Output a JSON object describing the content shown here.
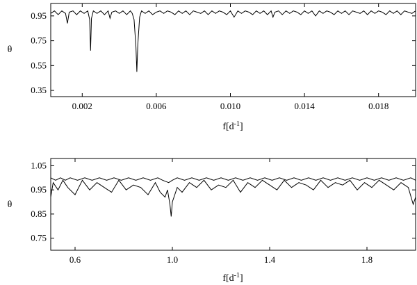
{
  "chart_data": [
    {
      "type": "line",
      "title": "",
      "xlabel": "f[d",
      "xlabel_sup": "-1",
      "xlabel_close": "]",
      "ylabel": "θ",
      "xlim": [
        0.0003,
        0.02
      ],
      "ylim": [
        0.3,
        1.05
      ],
      "xticks": [
        0.002,
        0.006,
        0.01,
        0.014,
        0.018
      ],
      "xtick_labels": [
        "0.002",
        "0.006",
        "0.010",
        "0.014",
        "0.018"
      ],
      "yticks": [
        0.35,
        0.55,
        0.75,
        0.95
      ],
      "ytick_labels": [
        "0.35",
        "0.55",
        "0.75",
        "0.95"
      ],
      "grid": false,
      "series": [
        {
          "x": [
            0.0003,
            0.0005,
            0.0007,
            0.0009,
            0.0011,
            0.0012,
            0.0013,
            0.0015,
            0.0017,
            0.0019,
            0.0021,
            0.0023,
            0.0024,
            0.00245,
            0.0025,
            0.0026,
            0.0028,
            0.003,
            0.0032,
            0.0034,
            0.0035,
            0.0036,
            0.0038,
            0.004,
            0.0042,
            0.0044,
            0.0046,
            0.0047,
            0.0048,
            0.0049,
            0.00495,
            0.005,
            0.0051,
            0.0052,
            0.0054,
            0.0056,
            0.0058,
            0.006,
            0.0062,
            0.0064,
            0.0066,
            0.0068,
            0.007,
            0.0072,
            0.0074,
            0.0076,
            0.0078,
            0.008,
            0.0082,
            0.0084,
            0.0086,
            0.0088,
            0.009,
            0.0092,
            0.0094,
            0.0096,
            0.0098,
            0.01,
            0.0102,
            0.0104,
            0.0106,
            0.0108,
            0.011,
            0.0112,
            0.0114,
            0.0116,
            0.0118,
            0.012,
            0.0122,
            0.0123,
            0.0124,
            0.0126,
            0.0128,
            0.013,
            0.0132,
            0.0134,
            0.0136,
            0.0138,
            0.014,
            0.0142,
            0.0144,
            0.0146,
            0.0148,
            0.015,
            0.0152,
            0.0154,
            0.0156,
            0.0158,
            0.016,
            0.0162,
            0.0164,
            0.0166,
            0.0168,
            0.017,
            0.0172,
            0.0174,
            0.0176,
            0.0178,
            0.018,
            0.0182,
            0.0184,
            0.0186,
            0.0188,
            0.019,
            0.0192,
            0.0194,
            0.0196,
            0.0198,
            0.02
          ],
          "y": [
            0.97,
            0.99,
            0.96,
            0.99,
            0.97,
            0.89,
            0.98,
            0.99,
            0.96,
            0.99,
            0.97,
            0.99,
            0.92,
            0.67,
            0.93,
            0.99,
            0.97,
            0.99,
            0.96,
            0.99,
            0.93,
            0.98,
            0.99,
            0.97,
            0.99,
            0.96,
            0.99,
            0.97,
            0.92,
            0.7,
            0.5,
            0.72,
            0.94,
            0.99,
            0.97,
            0.99,
            0.96,
            0.98,
            0.99,
            0.97,
            0.99,
            0.98,
            0.96,
            0.99,
            0.97,
            0.99,
            0.96,
            0.99,
            0.98,
            0.97,
            0.99,
            0.96,
            0.99,
            0.97,
            0.99,
            0.98,
            0.96,
            0.99,
            0.94,
            0.99,
            0.97,
            0.99,
            0.98,
            0.96,
            0.99,
            0.97,
            0.99,
            0.96,
            0.99,
            0.94,
            0.98,
            0.99,
            0.96,
            0.99,
            0.97,
            0.99,
            0.98,
            0.96,
            0.99,
            0.97,
            0.99,
            0.95,
            0.99,
            0.97,
            0.99,
            0.98,
            0.96,
            0.99,
            0.97,
            0.99,
            0.96,
            0.99,
            0.98,
            0.97,
            0.99,
            0.96,
            0.99,
            0.97,
            0.99,
            0.98,
            0.96,
            0.99,
            0.97,
            0.99,
            0.96,
            0.99,
            0.98,
            0.97,
            0.99
          ]
        }
      ]
    },
    {
      "type": "line",
      "title": "",
      "xlabel": "f[d",
      "xlabel_sup": "-1",
      "xlabel_close": "]",
      "ylabel": "θ",
      "xlim": [
        0.5,
        2.0
      ],
      "ylim": [
        0.7,
        1.08
      ],
      "xticks": [
        0.6,
        1.0,
        1.4,
        1.8
      ],
      "xtick_labels": [
        "0.6",
        "1.0",
        "1.4",
        "1.8"
      ],
      "yticks": [
        0.75,
        0.85,
        0.95,
        1.05
      ],
      "ytick_labels": [
        "0.75",
        "0.85",
        "0.95",
        "1.05"
      ],
      "grid": false,
      "series": [
        {
          "x": [
            0.5,
            0.51,
            0.53,
            0.55,
            0.57,
            0.6,
            0.63,
            0.66,
            0.69,
            0.72,
            0.75,
            0.78,
            0.81,
            0.84,
            0.87,
            0.9,
            0.93,
            0.95,
            0.97,
            0.98,
            0.99,
            0.995,
            1.0,
            1.01,
            1.02,
            1.04,
            1.07,
            1.1,
            1.13,
            1.16,
            1.19,
            1.22,
            1.25,
            1.28,
            1.31,
            1.34,
            1.37,
            1.4,
            1.43,
            1.46,
            1.49,
            1.52,
            1.55,
            1.58,
            1.61,
            1.64,
            1.67,
            1.7,
            1.73,
            1.76,
            1.79,
            1.82,
            1.85,
            1.88,
            1.91,
            1.94,
            1.97,
            1.99,
            2.0
          ],
          "y": [
            0.92,
            0.98,
            0.95,
            0.99,
            0.96,
            0.93,
            0.99,
            0.95,
            0.98,
            0.96,
            0.94,
            0.99,
            0.95,
            0.97,
            0.96,
            0.93,
            0.98,
            0.94,
            0.92,
            0.95,
            0.89,
            0.84,
            0.9,
            0.93,
            0.96,
            0.94,
            0.98,
            0.96,
            0.99,
            0.95,
            0.97,
            0.96,
            0.99,
            0.94,
            0.98,
            0.96,
            0.99,
            0.97,
            0.95,
            0.99,
            0.96,
            0.98,
            0.97,
            0.95,
            0.99,
            0.96,
            0.98,
            0.97,
            0.99,
            0.95,
            0.98,
            0.96,
            0.99,
            0.97,
            0.95,
            0.98,
            0.96,
            0.89,
            0.92
          ]
        },
        {
          "x": [
            0.5,
            0.52,
            0.54,
            0.56,
            0.58,
            0.61,
            0.64,
            0.67,
            0.7,
            0.73,
            0.76,
            0.79,
            0.82,
            0.85,
            0.88,
            0.91,
            0.94,
            0.96,
            0.985,
            1.0,
            1.02,
            1.05,
            1.08,
            1.11,
            1.14,
            1.17,
            1.2,
            1.23,
            1.26,
            1.29,
            1.32,
            1.35,
            1.38,
            1.41,
            1.44,
            1.47,
            1.5,
            1.53,
            1.56,
            1.59,
            1.62,
            1.65,
            1.68,
            1.71,
            1.74,
            1.77,
            1.8,
            1.83,
            1.86,
            1.89,
            1.92,
            1.95,
            1.98,
            2.0
          ],
          "y": [
            1.0,
            0.99,
            1.0,
            0.99,
            1.0,
            0.99,
            1.0,
            0.99,
            1.0,
            0.99,
            1.0,
            0.99,
            1.0,
            0.99,
            1.0,
            0.99,
            1.0,
            0.99,
            0.98,
            0.99,
            1.0,
            0.99,
            1.0,
            0.99,
            1.0,
            0.99,
            1.0,
            0.99,
            1.0,
            0.99,
            1.0,
            0.99,
            1.0,
            0.99,
            1.0,
            0.99,
            1.0,
            0.99,
            1.0,
            0.99,
            1.0,
            0.99,
            1.0,
            0.99,
            1.0,
            0.99,
            1.0,
            0.99,
            1.0,
            0.99,
            1.0,
            0.99,
            1.0,
            0.99
          ]
        }
      ]
    }
  ]
}
